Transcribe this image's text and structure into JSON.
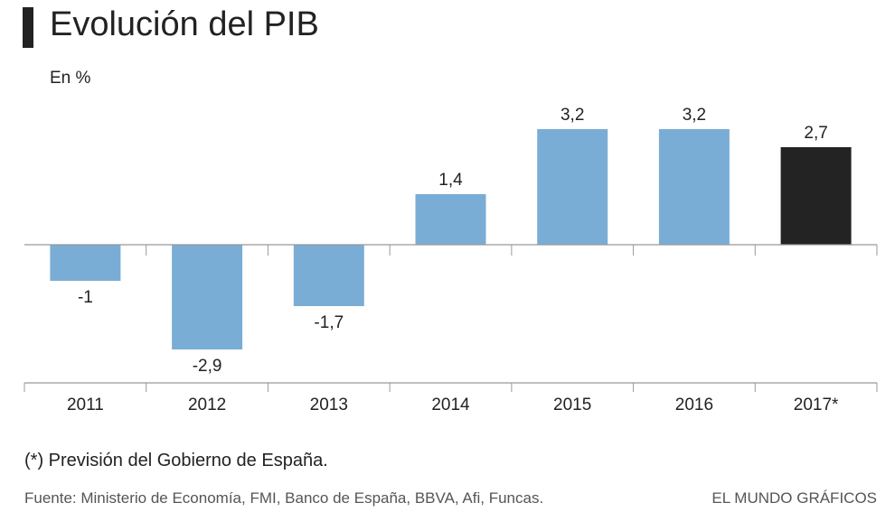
{
  "header": {
    "title": "Evolución del PIB",
    "unit_label": "En %"
  },
  "footer": {
    "note": "(*) Previsión del Gobierno de España.",
    "source": "Fuente: Ministerio de Economía, FMI, Banco de España, BBVA, Afi, Funcas.",
    "brand": "EL MUNDO GRÁFICOS"
  },
  "colors": {
    "bar": "#7aadd5",
    "highlight_bar": "#232323",
    "axis": "#999999",
    "text": "#222222"
  },
  "chart_data": {
    "type": "bar",
    "title": "Evolución del PIB",
    "ylabel": "En %",
    "categories": [
      "2011",
      "2012",
      "2013",
      "2014",
      "2015",
      "2016",
      "2017*"
    ],
    "values": [
      -1,
      -2.9,
      -1.7,
      1.4,
      3.2,
      3.2,
      2.7
    ],
    "data_labels": [
      "-1",
      "-2,9",
      "-1,7",
      "1,4",
      "3,2",
      "3,2",
      "2,7"
    ],
    "highlighted": [
      "2017*"
    ],
    "grid": false,
    "ylim": [
      -3.9,
      3.8
    ]
  }
}
